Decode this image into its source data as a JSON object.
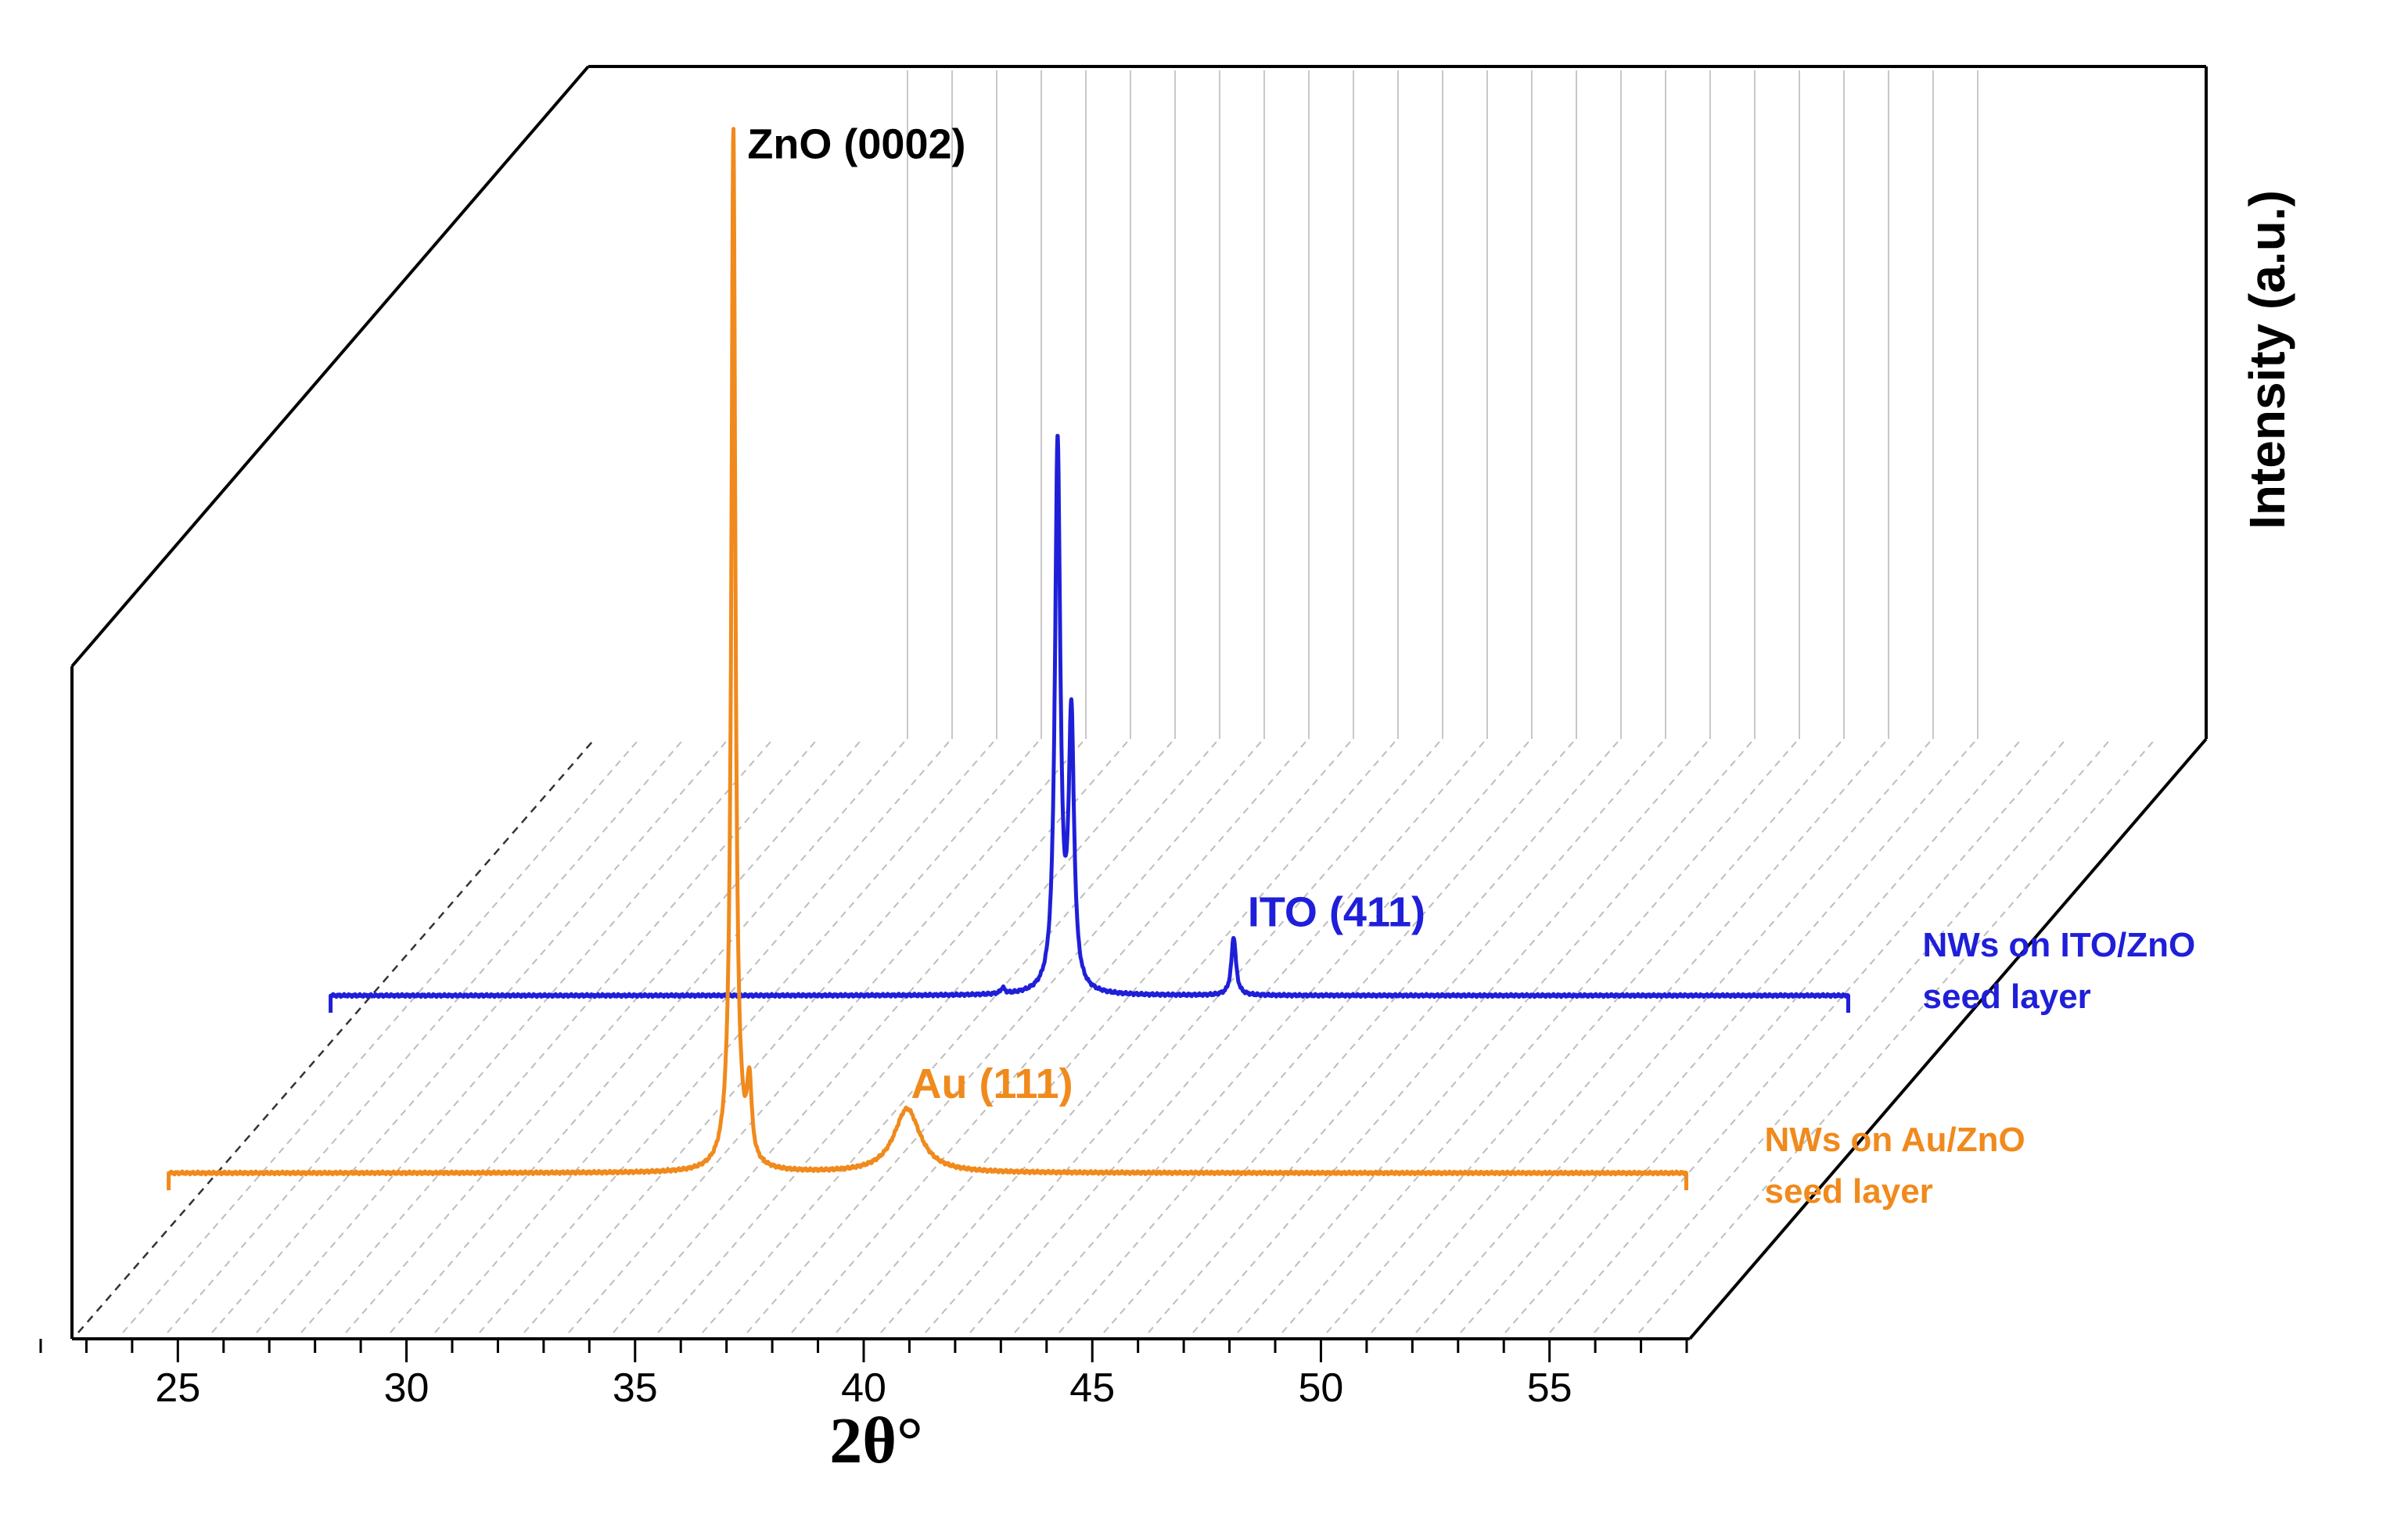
{
  "chart_data": {
    "type": "line",
    "style": "3d-waterfall",
    "xlabel": "2θ°",
    "ylabel": "Intensity (a.u.)",
    "xlim": [
      22,
      58
    ],
    "xticks": [
      25,
      30,
      35,
      40,
      45,
      50,
      55
    ],
    "xtick_labels": [
      "25",
      "30",
      "35",
      "40",
      "45",
      "50",
      "55"
    ],
    "ylim": [
      0,
      100
    ],
    "series": [
      {
        "name": "NWs on Au/ZnO seed layer",
        "legend_lines": [
          "NWs on Au/ZnO",
          "seed layer"
        ],
        "color": "#F08A1C",
        "depth": 0,
        "x_range": [
          24.8,
          58.0
        ],
        "peaks": [
          {
            "x": 37.15,
            "height": 100,
            "width": 0.05
          },
          {
            "x": 37.15,
            "height": 6,
            "width": 0.18
          },
          {
            "x": 37.5,
            "height": 7.5,
            "width": 0.06
          },
          {
            "x": 40.95,
            "height": 6.5,
            "width": 0.35
          }
        ]
      },
      {
        "name": "NWs on ITO/ZnO seed layer",
        "legend_lines": [
          "NWs on ITO/ZnO",
          "seed layer"
        ],
        "color": "#1F1FD9",
        "depth": 1,
        "x_range": [
          24.8,
          58.0
        ],
        "peaks": [
          {
            "x": 39.5,
            "height": 0.6,
            "width": 0.05
          },
          {
            "x": 40.7,
            "height": 56,
            "width": 0.07
          },
          {
            "x": 41.0,
            "height": 27.5,
            "width": 0.07
          },
          {
            "x": 44.55,
            "height": 6,
            "width": 0.06
          }
        ]
      }
    ],
    "annotations": [
      {
        "text": "ZnO (0002)",
        "series": "NWs on Au/ZnO seed layer",
        "x": 37.15,
        "color": "#000000"
      },
      {
        "text": "ITO (411)",
        "series": "NWs on ITO/ZnO seed layer",
        "x": 44.55,
        "color": "#1F1FD9"
      },
      {
        "text": "Au (111)",
        "series": "NWs on Au/ZnO seed layer",
        "x": 40.95,
        "color": "#F08A1C"
      }
    ],
    "grid": true
  },
  "colors": {
    "frame": "#000000",
    "grid": "#c8c8c8",
    "floor_grid": "#bdbdbd"
  }
}
